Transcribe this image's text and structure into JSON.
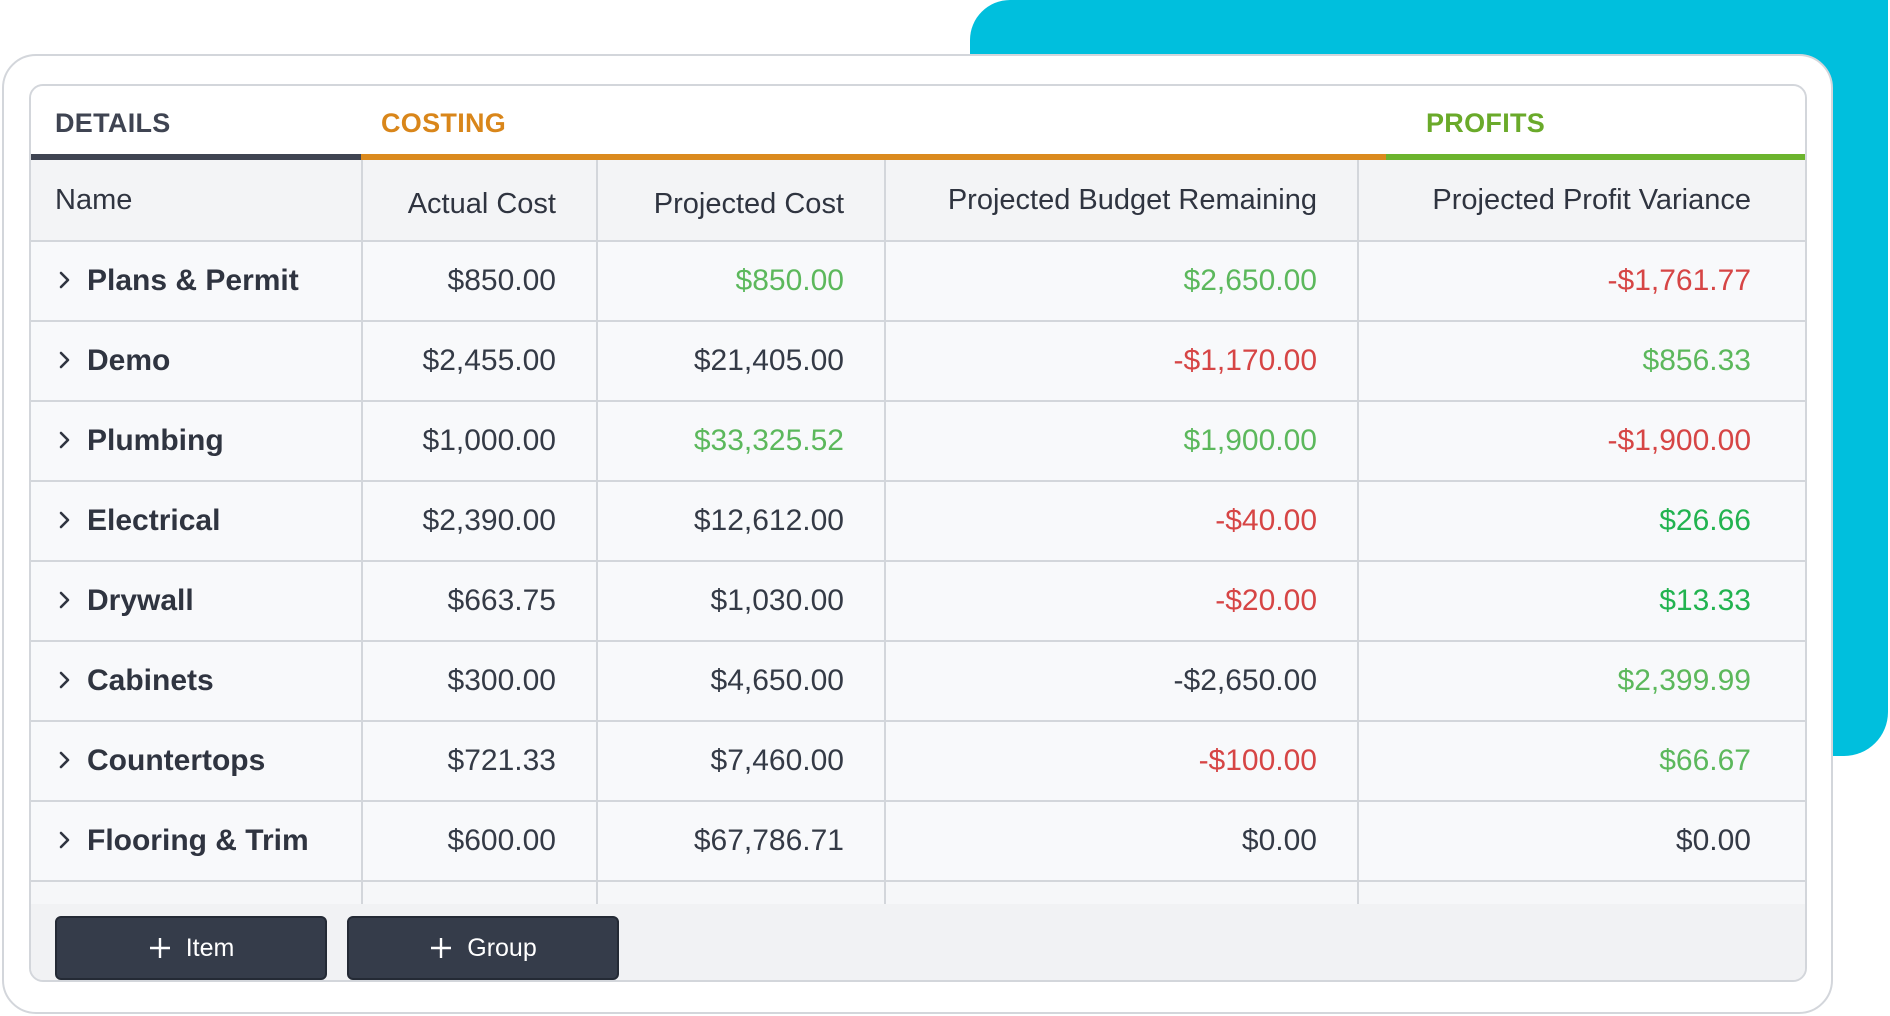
{
  "sections": {
    "details": {
      "label": "DETAILS",
      "color": "#3f4452",
      "line": "#3f4452"
    },
    "costing": {
      "label": "COSTING",
      "color": "#d9861a",
      "line": "#db8a1e"
    },
    "profits": {
      "label": "PROFITS",
      "color": "#6aaa2a",
      "line": "#6cb42e"
    }
  },
  "columns": {
    "name": "Name",
    "actual_cost": "Actual Cost",
    "projected_cost": "Projected Cost",
    "budget_remaining": "Projected Budget Remaining",
    "profit_variance": "Projected Profit Variance"
  },
  "colors": {
    "positive": "#5cb85c",
    "negative": "#d64545",
    "positive_strong": "#22b350",
    "neutral": "#343a46",
    "accent": "#00bfdd"
  },
  "rows": [
    {
      "name": "Plans & Permit",
      "actual": "$850.00",
      "projected": "$850.00",
      "projected_tone": "positive",
      "budget": "$2,650.00",
      "budget_tone": "positive",
      "variance": "-$1,761.77",
      "variance_tone": "negative"
    },
    {
      "name": "Demo",
      "actual": "$2,455.00",
      "projected": "$21,405.00",
      "projected_tone": "neutral",
      "budget": "-$1,170.00",
      "budget_tone": "negative",
      "variance": "$856.33",
      "variance_tone": "positive"
    },
    {
      "name": "Plumbing",
      "actual": "$1,000.00",
      "projected": "$33,325.52",
      "projected_tone": "positive",
      "budget": "$1,900.00",
      "budget_tone": "positive",
      "variance": "-$1,900.00",
      "variance_tone": "negative"
    },
    {
      "name": "Electrical",
      "actual": "$2,390.00",
      "projected": "$12,612.00",
      "projected_tone": "neutral",
      "budget": "-$40.00",
      "budget_tone": "negative",
      "variance": "$26.66",
      "variance_tone": "positive_strong"
    },
    {
      "name": "Drywall",
      "actual": "$663.75",
      "projected": "$1,030.00",
      "projected_tone": "neutral",
      "budget": "-$20.00",
      "budget_tone": "negative",
      "variance": "$13.33",
      "variance_tone": "positive_strong"
    },
    {
      "name": "Cabinets",
      "actual": "$300.00",
      "projected": "$4,650.00",
      "projected_tone": "neutral",
      "budget": "-$2,650.00",
      "budget_tone": "neutral",
      "variance": "$2,399.99",
      "variance_tone": "positive"
    },
    {
      "name": "Countertops",
      "actual": "$721.33",
      "projected": "$7,460.00",
      "projected_tone": "neutral",
      "budget": "-$100.00",
      "budget_tone": "negative",
      "variance": "$66.67",
      "variance_tone": "positive"
    },
    {
      "name": "Flooring & Trim",
      "actual": "$600.00",
      "projected": "$67,786.71",
      "projected_tone": "neutral",
      "budget": "$0.00",
      "budget_tone": "neutral",
      "variance": "$0.00",
      "variance_tone": "neutral"
    }
  ],
  "footer": {
    "add_item_label": "Item",
    "add_group_label": "Group"
  },
  "icons": {
    "expand": "chevron-right-icon",
    "add": "plus-icon"
  }
}
